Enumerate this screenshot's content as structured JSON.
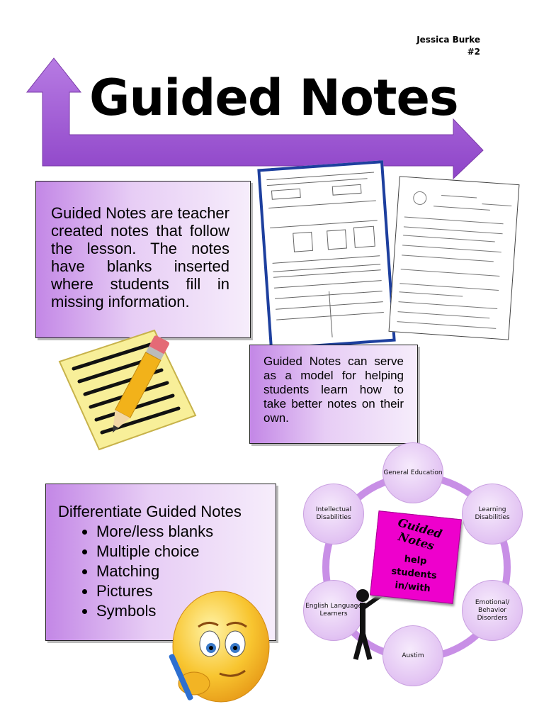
{
  "header": {
    "author_name": "Jessica Burke",
    "author_number": "#2",
    "title": "Guided Notes"
  },
  "boxes": {
    "definition": "Guided Notes are teacher created notes that follow the lesson. The notes have blanks inserted where students fill in missing information.",
    "model": "Guided Notes can serve as a model for helping students learn how to take better notes on their own.",
    "differentiate_title": "Differentiate Guided Notes",
    "differentiate_items": [
      "More/less blanks",
      "Multiple choice",
      "Matching",
      "Pictures",
      "Symbols"
    ]
  },
  "cycle": {
    "center_title": "Guided Notes",
    "center_text": [
      "help",
      "students",
      "in/with"
    ],
    "nodes": [
      "General Education",
      "Learning Disabilities",
      "Emotional/ Behavior Disorders",
      "Austim",
      "English Language Learners",
      "Intellectual Disabilities"
    ]
  },
  "colors": {
    "arrow": "#9b59d0",
    "box_gradient_start": "#c387e6",
    "note_pink": "#ee00cc"
  },
  "icons": [
    "arrow-graphic",
    "notepad-pencil-icon",
    "smiley-writing-icon",
    "worksheet-image",
    "stick-figure-icon"
  ]
}
